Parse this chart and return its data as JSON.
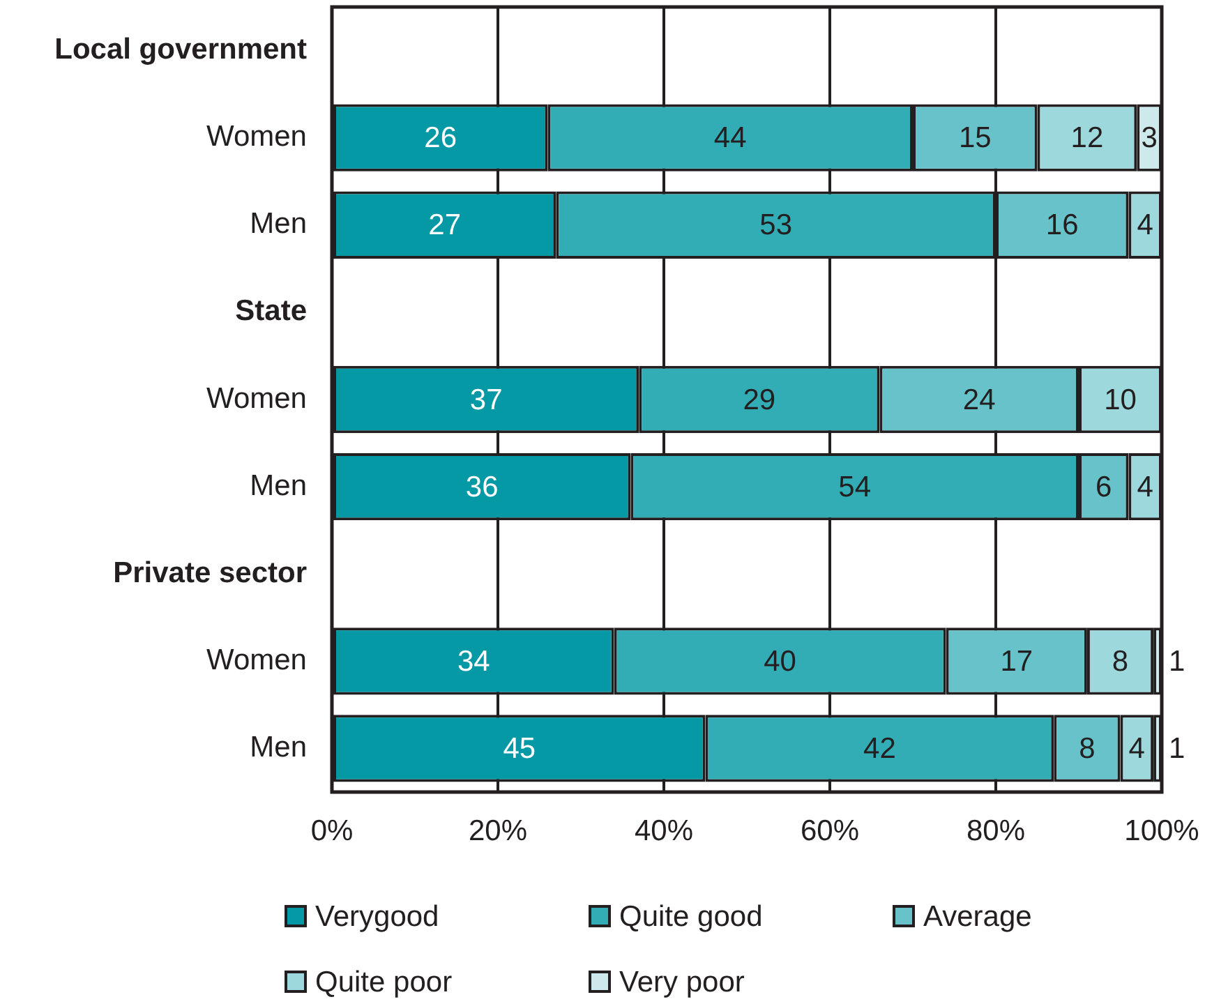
{
  "chart_data": {
    "type": "bar",
    "orientation": "horizontal",
    "stacked": true,
    "categories": [
      "Local government",
      "Women",
      "Men",
      "State",
      "Women",
      "Men",
      "Private sector",
      "Women",
      "Men"
    ],
    "series": [
      {
        "name": "Verygood",
        "color": "#0598a5",
        "values": [
          null,
          26,
          27,
          null,
          37,
          36,
          null,
          34,
          45
        ]
      },
      {
        "name": "Quite good",
        "color": "#33adb5",
        "values": [
          null,
          44,
          53,
          null,
          29,
          54,
          null,
          40,
          42
        ]
      },
      {
        "name": "Average",
        "color": "#67c3c9",
        "values": [
          null,
          15,
          16,
          null,
          24,
          6,
          null,
          17,
          8
        ]
      },
      {
        "name": "Quite poor",
        "color": "#9dd8dc",
        "values": [
          null,
          12,
          4,
          null,
          10,
          4,
          null,
          8,
          4
        ]
      },
      {
        "name": "Very poor",
        "color": "#cde9eb",
        "values": [
          null,
          3,
          null,
          null,
          null,
          null,
          null,
          1,
          1
        ]
      }
    ],
    "xlim": [
      0,
      100
    ],
    "xticks": [
      {
        "value": 0,
        "label": "0%"
      },
      {
        "value": 20,
        "label": "20%"
      },
      {
        "value": 40,
        "label": "40%"
      },
      {
        "value": 60,
        "label": "60%"
      },
      {
        "value": 80,
        "label": "80%"
      },
      {
        "value": 100,
        "label": "100%"
      }
    ],
    "grid": "x",
    "legend": "bottom",
    "data_labels": true
  }
}
